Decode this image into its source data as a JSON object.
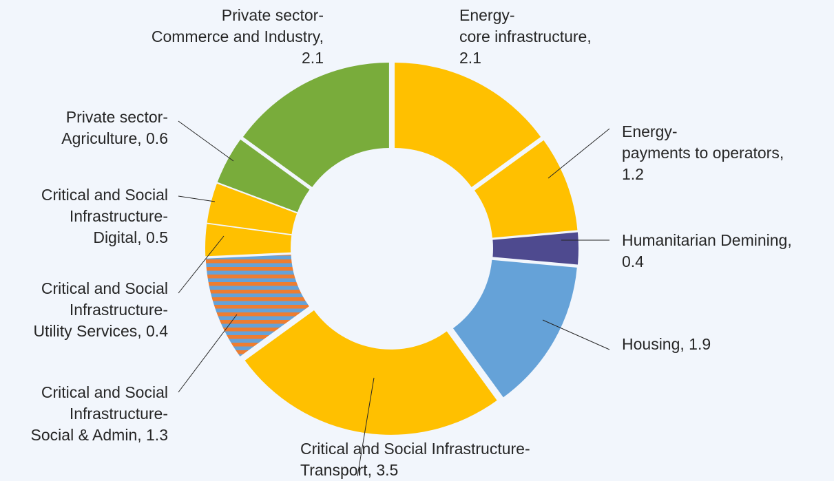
{
  "chart_data": {
    "type": "pie",
    "title": "",
    "slices": [
      {
        "label_lines": [
          "Energy-",
          "core infrastructure,",
          "2.1"
        ],
        "value": 2.1,
        "color": "#ffc000",
        "key": "energy-core-infrastructure"
      },
      {
        "label_lines": [
          "Energy-",
          "payments to operators,",
          "1.2"
        ],
        "value": 1.2,
        "color": "#ffc000",
        "key": "energy-payments-to-operators"
      },
      {
        "label_lines": [
          "Humanitarian Demining,",
          "0.4"
        ],
        "value": 0.4,
        "color": "#4e4a8f",
        "key": "humanitarian-demining"
      },
      {
        "label_lines": [
          "Housing, 1.9"
        ],
        "value": 1.9,
        "color": "#65a2d8",
        "key": "housing"
      },
      {
        "label_lines": [
          "Critical and Social Infrastructure-",
          "Transport, 3.5"
        ],
        "value": 3.5,
        "color": "#ffc000",
        "key": "transport"
      },
      {
        "label_lines": [
          "Critical and Social",
          "Infrastructure-",
          "Social & Admin, 1.3"
        ],
        "value": 1.3,
        "color": "pattern",
        "key": "social-admin"
      },
      {
        "label_lines": [
          "Critical and Social",
          "Infrastructure-",
          "Utility Services, 0.4"
        ],
        "value": 0.4,
        "color": "#ffc000",
        "key": "utility-services"
      },
      {
        "label_lines": [
          "Critical and Social",
          "Infrastructure-",
          "Digital, 0.5"
        ],
        "value": 0.5,
        "color": "#ffc000",
        "key": "digital"
      },
      {
        "label_lines": [
          "Private sector-",
          "Agriculture, 0.6"
        ],
        "value": 0.6,
        "color": "#79ac3b",
        "key": "agriculture"
      },
      {
        "label_lines": [
          "Private sector-",
          "Commerce and Industry,",
          "2.1"
        ],
        "value": 2.1,
        "color": "#79ac3b",
        "key": "commerce-industry"
      }
    ],
    "pattern_colors": [
      "#ed7d31",
      "#65a2d8"
    ],
    "legend": "none"
  }
}
